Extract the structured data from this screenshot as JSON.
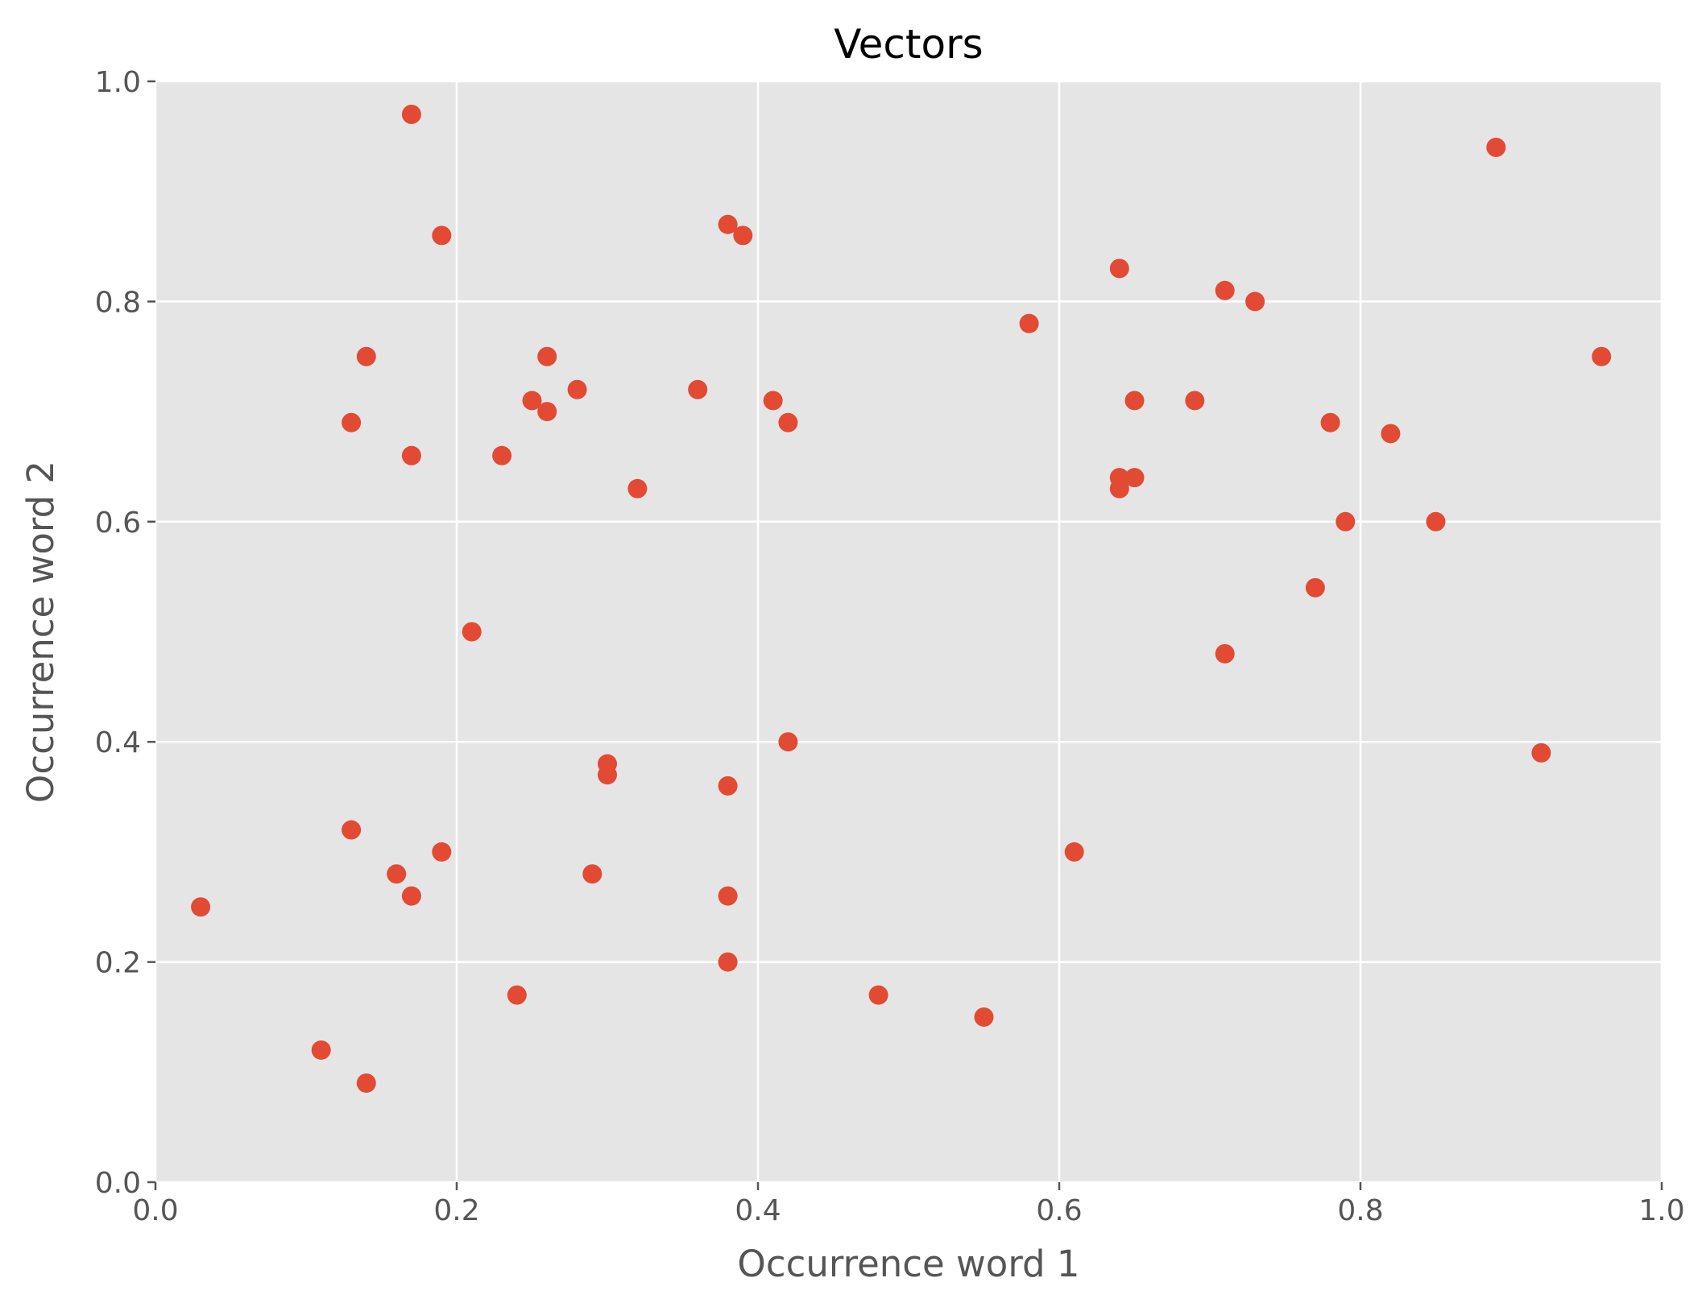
{
  "chart_data": {
    "type": "scatter",
    "title": "Vectors",
    "xlabel": "Occurrence word 1",
    "ylabel": "Occurrence word 2",
    "xlim": [
      0.0,
      1.0
    ],
    "ylim": [
      0.0,
      1.0
    ],
    "grid": true,
    "legend": "none",
    "colors": {
      "background": "#e5e5e5",
      "grid": "#ffffff",
      "point": "#e24a33",
      "text": "#555555"
    },
    "x_ticks": [
      "0.0",
      "0.2",
      "0.4",
      "0.6",
      "0.8",
      "1.0"
    ],
    "y_ticks": [
      "0.0",
      "0.2",
      "0.4",
      "0.6",
      "0.8",
      "1.0"
    ],
    "series": [
      {
        "points": [
          [
            0.17,
            0.97
          ],
          [
            0.19,
            0.86
          ],
          [
            0.38,
            0.87
          ],
          [
            0.39,
            0.86
          ],
          [
            0.14,
            0.75
          ],
          [
            0.26,
            0.75
          ],
          [
            0.36,
            0.72
          ],
          [
            0.25,
            0.71
          ],
          [
            0.28,
            0.72
          ],
          [
            0.26,
            0.7
          ],
          [
            0.13,
            0.69
          ],
          [
            0.17,
            0.66
          ],
          [
            0.23,
            0.66
          ],
          [
            0.32,
            0.63
          ],
          [
            0.41,
            0.71
          ],
          [
            0.42,
            0.69
          ],
          [
            0.21,
            0.5
          ],
          [
            0.3,
            0.38
          ],
          [
            0.3,
            0.37
          ],
          [
            0.38,
            0.36
          ],
          [
            0.42,
            0.4
          ],
          [
            0.13,
            0.32
          ],
          [
            0.16,
            0.28
          ],
          [
            0.17,
            0.26
          ],
          [
            0.19,
            0.3
          ],
          [
            0.03,
            0.25
          ],
          [
            0.29,
            0.28
          ],
          [
            0.38,
            0.26
          ],
          [
            0.38,
            0.2
          ],
          [
            0.24,
            0.17
          ],
          [
            0.11,
            0.12
          ],
          [
            0.14,
            0.09
          ],
          [
            0.48,
            0.17
          ],
          [
            0.55,
            0.15
          ],
          [
            0.61,
            0.3
          ],
          [
            0.58,
            0.78
          ],
          [
            0.64,
            0.83
          ],
          [
            0.71,
            0.81
          ],
          [
            0.73,
            0.8
          ],
          [
            0.65,
            0.71
          ],
          [
            0.69,
            0.71
          ],
          [
            0.64,
            0.64
          ],
          [
            0.64,
            0.63
          ],
          [
            0.65,
            0.64
          ],
          [
            0.78,
            0.69
          ],
          [
            0.82,
            0.68
          ],
          [
            0.79,
            0.6
          ],
          [
            0.85,
            0.6
          ],
          [
            0.77,
            0.54
          ],
          [
            0.71,
            0.48
          ],
          [
            0.89,
            0.94
          ],
          [
            0.96,
            0.75
          ],
          [
            0.92,
            0.39
          ]
        ]
      }
    ]
  }
}
